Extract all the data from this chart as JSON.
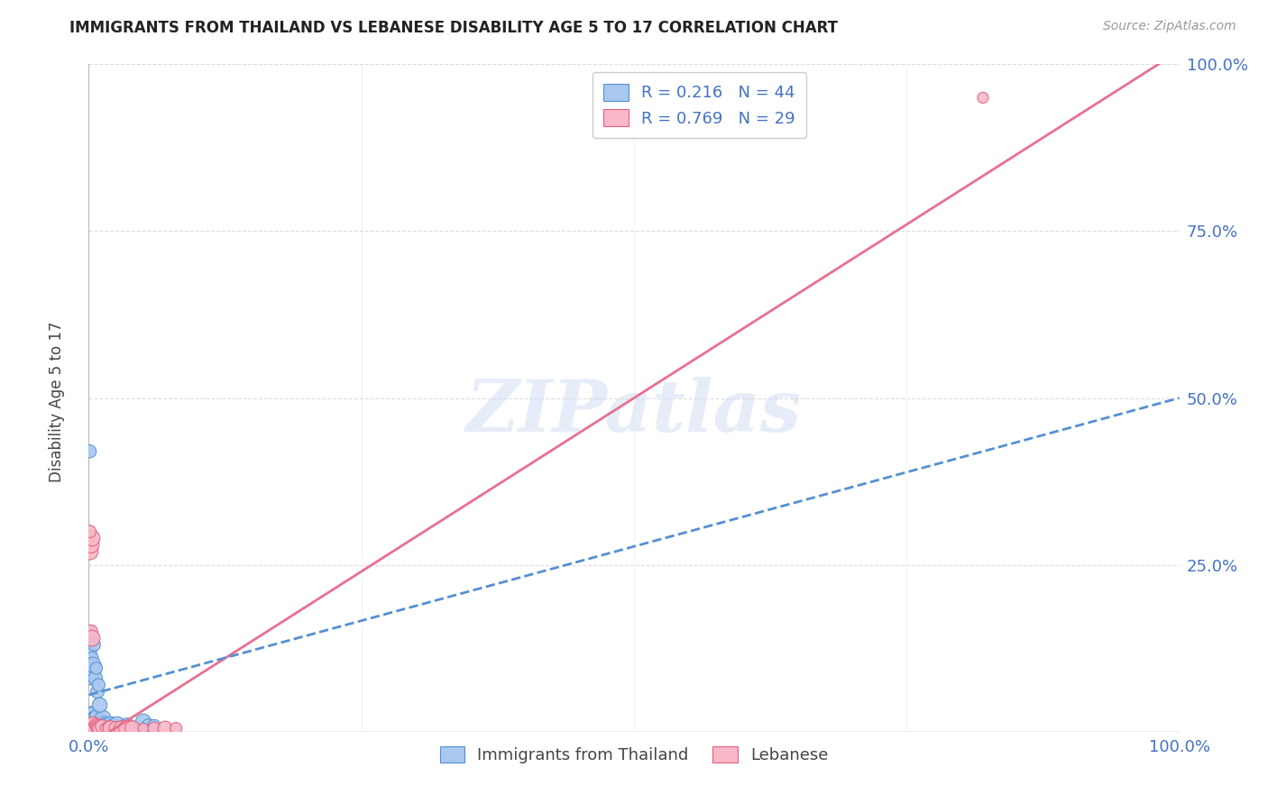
{
  "title": "IMMIGRANTS FROM THAILAND VS LEBANESE DISABILITY AGE 5 TO 17 CORRELATION CHART",
  "source": "Source: ZipAtlas.com",
  "ylabel": "Disability Age 5 to 17",
  "xlim": [
    0,
    1.0
  ],
  "ylim": [
    0,
    1.0
  ],
  "watermark_text": "ZIPatlas",
  "thailand_color": "#a8c8f0",
  "thailand_edge": "#5590d0",
  "thailand_line_color": "#5590d0",
  "lebanese_color": "#f8b8c8",
  "lebanese_edge": "#e06080",
  "lebanese_line_color": "#e87090",
  "legend_r_color": "#4472c4",
  "legend_n_color": "#4472c4",
  "title_color": "#222222",
  "source_color": "#999999",
  "tick_color": "#4472c4",
  "ylabel_color": "#444444",
  "grid_color": "#dddddd",
  "thailand_x": [
    0.002,
    0.003,
    0.004,
    0.005,
    0.006,
    0.007,
    0.008,
    0.009,
    0.01,
    0.011,
    0.012,
    0.013,
    0.014,
    0.015,
    0.016,
    0.017,
    0.018,
    0.019,
    0.02,
    0.022,
    0.024,
    0.026,
    0.028,
    0.03,
    0.035,
    0.04,
    0.045,
    0.05,
    0.055,
    0.06,
    0.001,
    0.001,
    0.002,
    0.002,
    0.003,
    0.003,
    0.004,
    0.005,
    0.006,
    0.007,
    0.008,
    0.009,
    0.01,
    0.001
  ],
  "thailand_y": [
    0.03,
    0.025,
    0.02,
    0.015,
    0.018,
    0.022,
    0.012,
    0.01,
    0.008,
    0.015,
    0.012,
    0.02,
    0.01,
    0.015,
    0.01,
    0.008,
    0.012,
    0.008,
    0.01,
    0.012,
    0.008,
    0.01,
    0.005,
    0.005,
    0.008,
    0.005,
    0.003,
    0.015,
    0.008,
    0.008,
    0.15,
    0.12,
    0.14,
    0.08,
    0.11,
    0.09,
    0.1,
    0.13,
    0.08,
    0.095,
    0.06,
    0.07,
    0.04,
    0.42
  ],
  "lebanese_x": [
    0.001,
    0.002,
    0.003,
    0.004,
    0.005,
    0.006,
    0.007,
    0.008,
    0.009,
    0.01,
    0.012,
    0.015,
    0.018,
    0.02,
    0.025,
    0.03,
    0.035,
    0.04,
    0.05,
    0.06,
    0.07,
    0.08,
    0.001,
    0.002,
    0.003,
    0.002,
    0.003,
    0.82,
    0.001
  ],
  "lebanese_y": [
    0.01,
    0.008,
    0.005,
    0.01,
    0.008,
    0.005,
    0.01,
    0.008,
    0.005,
    0.005,
    0.008,
    0.005,
    0.008,
    0.005,
    0.005,
    0.005,
    0.005,
    0.005,
    0.005,
    0.005,
    0.005,
    0.005,
    0.27,
    0.28,
    0.29,
    0.15,
    0.14,
    0.95,
    0.3
  ],
  "thailand_R": 0.216,
  "thailand_N": 44,
  "lebanese_R": 0.769,
  "lebanese_N": 29,
  "thailand_line_x": [
    0.0,
    1.0
  ],
  "thailand_line_y": [
    0.055,
    0.5
  ],
  "lebanese_line_x": [
    0.0,
    1.0
  ],
  "lebanese_line_y": [
    -0.02,
    1.02
  ]
}
